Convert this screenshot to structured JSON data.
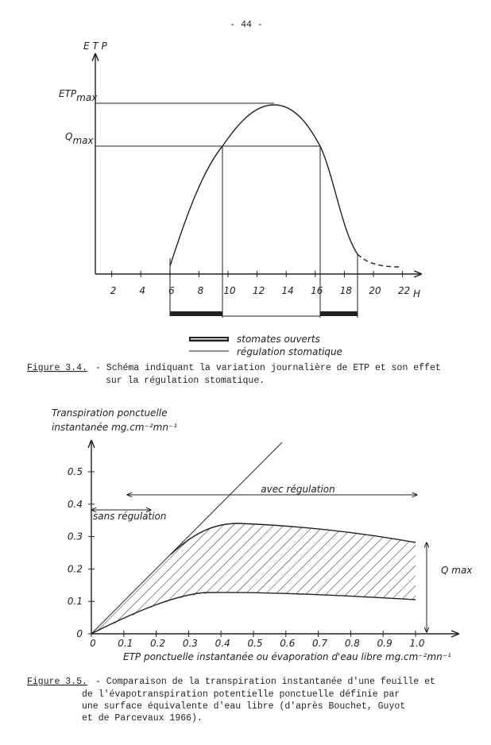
{
  "page_number": "- 44 -",
  "figure1": {
    "y_axis_label": "E T P",
    "etp_max": {
      "label": "ETP",
      "sub": "max"
    },
    "q_max": {
      "label": "Q",
      "sub": "max"
    },
    "xticks": [
      2,
      4,
      6,
      8,
      10,
      12,
      14,
      16,
      18,
      20,
      22
    ],
    "x_unit": "H",
    "legend": [
      "stomates ouverts",
      "régulation stomatique"
    ],
    "caption": {
      "label": "Figure 3.4.",
      "lines": [
        "- Schéma indiquant la variation journalière de ETP et son effet",
        "sur la régulation stomatique."
      ]
    }
  },
  "figure2": {
    "y_axis_label": [
      "Transpiration ponctuelle",
      "instantanée  mg.cm⁻²mn⁻¹"
    ],
    "yticks": [
      0,
      0.1,
      0.2,
      0.3,
      0.4,
      0.5
    ],
    "xticks": [
      0,
      0.1,
      0.2,
      0.3,
      0.4,
      0.5,
      0.6,
      0.7,
      0.8,
      0.9,
      {
        "value": 1,
        "label": "1.0"
      }
    ],
    "x_axis_label": "ETP ponctuelle  instantanée  ou évaporation d'eau libre  mg.cm⁻²mn⁻¹",
    "annotations": {
      "with": "avec régulation",
      "without": "sans régulation",
      "qmax": "Q max"
    },
    "caption": {
      "label": "Figure 3.5.",
      "lines": [
        "- Comparaison de la transpiration instantanée d'une feuille et",
        "de l'évapotranspiration potentielle ponctuelle définie par",
        "une surface équivalente d'eau libre (d'après Bouchet, Guyot",
        "et de Parcevaux 1966)."
      ]
    }
  }
}
